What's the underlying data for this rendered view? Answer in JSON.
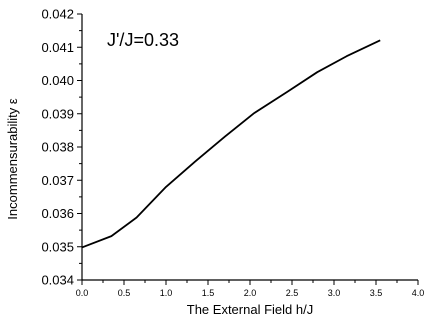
{
  "chart_data": {
    "type": "line",
    "title": "",
    "xlabel": "The External Field h/J",
    "ylabel": "Incommensurability ε",
    "xlim": [
      0.0,
      4.0
    ],
    "ylim": [
      0.034,
      0.042
    ],
    "xticks": [
      0.0,
      0.5,
      1.0,
      1.5,
      2.0,
      2.5,
      3.0,
      3.5,
      4.0
    ],
    "xtick_labels": [
      "0.0",
      "0.5",
      "1.0",
      "1.5",
      "2.0",
      "2.5",
      "3.0",
      "3.5",
      "4.0"
    ],
    "yticks": [
      0.034,
      0.035,
      0.036,
      0.037,
      0.038,
      0.039,
      0.04,
      0.041,
      0.042
    ],
    "ytick_labels": [
      "0.034",
      "0.035",
      "0.036",
      "0.037",
      "0.038",
      "0.039",
      "0.040",
      "0.041",
      "0.042"
    ],
    "grid": false,
    "annotation": "J'/J=0.33",
    "series": [
      {
        "color": "#000000",
        "x": [
          0.0,
          0.35,
          0.65,
          1.0,
          1.35,
          1.7,
          2.05,
          2.45,
          2.8,
          3.15,
          3.55
        ],
        "y": [
          0.03498,
          0.03532,
          0.03588,
          0.0368,
          0.03757,
          0.03831,
          0.03902,
          0.03967,
          0.04025,
          0.04073,
          0.04121
        ]
      }
    ]
  }
}
